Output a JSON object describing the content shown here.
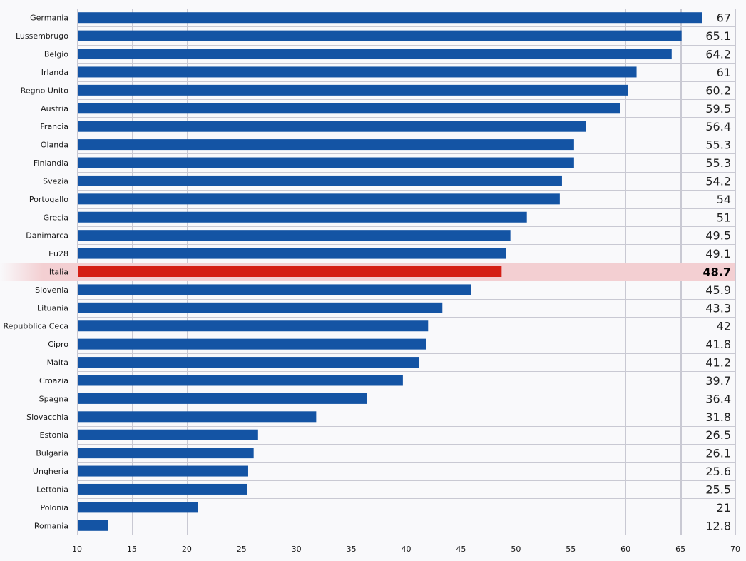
{
  "colors": {
    "bar": "#1454a4",
    "highlight_bar": "#d41f15",
    "highlight_band": "#f3cfd2",
    "grid": "#c9c9d3",
    "background": "#f9f9fb"
  },
  "chart_data": {
    "type": "bar",
    "orientation": "horizontal",
    "categories": [
      "Germania",
      "Lussembrugo",
      "Belgio",
      "Irlanda",
      "Regno Unito",
      "Austria",
      "Francia",
      "Olanda",
      "Finlandia",
      "Svezia",
      "Portogallo",
      "Grecia",
      "Danimarca",
      "Eu28",
      "Italia",
      "Slovenia",
      "Lituania",
      "Repubblica Ceca",
      "Cipro",
      "Malta",
      "Croazia",
      "Spagna",
      "Slovacchia",
      "Estonia",
      "Bulgaria",
      "Ungheria",
      "Lettonia",
      "Polonia",
      "Romania"
    ],
    "values": [
      67,
      65.1,
      64.2,
      61,
      60.2,
      59.5,
      56.4,
      55.3,
      55.3,
      54.2,
      54,
      51,
      49.5,
      49.1,
      48.7,
      45.9,
      43.3,
      42,
      41.8,
      41.2,
      39.7,
      36.4,
      31.8,
      26.5,
      26.1,
      25.6,
      25.5,
      21,
      12.8
    ],
    "value_labels": [
      "67",
      "65.1",
      "64.2",
      "61",
      "60.2",
      "59.5",
      "56.4",
      "55.3",
      "55.3",
      "54.2",
      "54",
      "51",
      "49.5",
      "49.1",
      "48.7",
      "45.9",
      "43.3",
      "42",
      "41.8",
      "41.2",
      "39.7",
      "36.4",
      "31.8",
      "26.5",
      "26.1",
      "25.6",
      "25.5",
      "21",
      "12.8"
    ],
    "highlight": "Italia",
    "xlim": [
      10,
      70
    ],
    "xticks": [
      10,
      15,
      20,
      25,
      30,
      35,
      40,
      45,
      50,
      55,
      60,
      65,
      70
    ],
    "grid": true,
    "title": "",
    "xlabel": "",
    "ylabel": ""
  }
}
